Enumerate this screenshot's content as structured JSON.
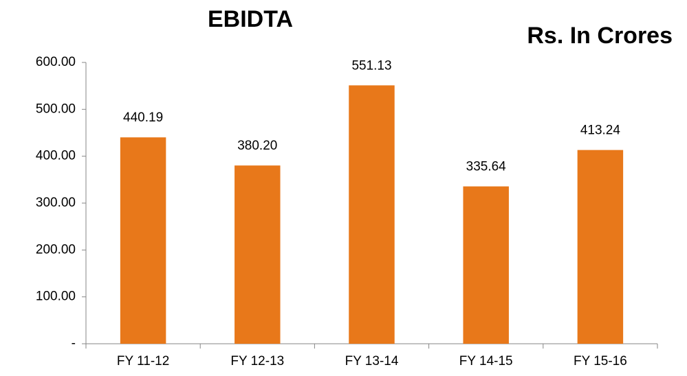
{
  "chart_data": {
    "type": "bar",
    "title": "EBIDTA",
    "subtitle": "Rs. In Crores",
    "categories": [
      "FY 11-12",
      "FY 12-13",
      "FY 13-14",
      "FY 14-15",
      "FY 15-16"
    ],
    "values": [
      440.19,
      380.2,
      551.13,
      335.64,
      413.24
    ],
    "value_labels": [
      "440.19",
      "380.20",
      "551.13",
      "335.64",
      "413.24"
    ],
    "color": "#e8781a",
    "ylim": [
      0,
      600
    ],
    "yticks": [
      {
        "value": 0,
        "label": "-"
      },
      {
        "value": 100,
        "label": "100.00"
      },
      {
        "value": 200,
        "label": "200.00"
      },
      {
        "value": 300,
        "label": "300.00"
      },
      {
        "value": 400,
        "label": "400.00"
      },
      {
        "value": 500,
        "label": "500.00"
      },
      {
        "value": 600,
        "label": "600.00"
      }
    ],
    "grid": false
  }
}
